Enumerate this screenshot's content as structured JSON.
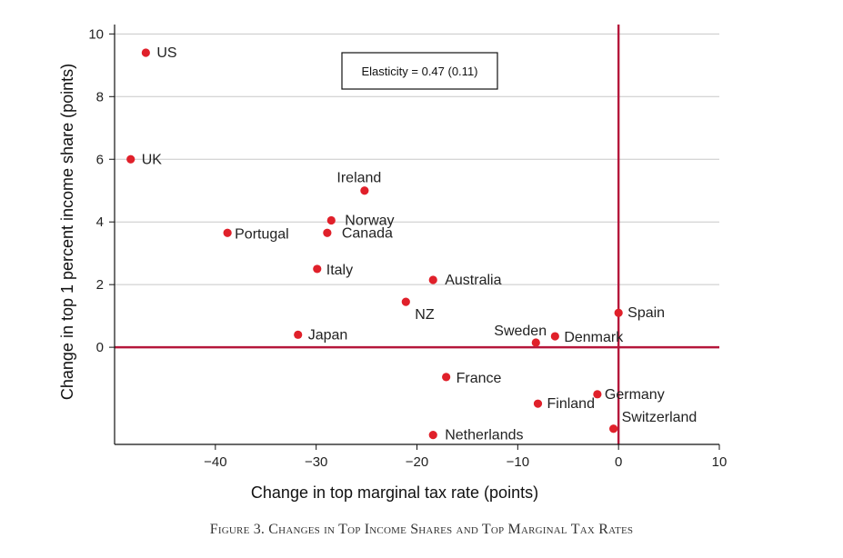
{
  "chart_data": {
    "type": "scatter",
    "xlabel": "Change in top marginal tax rate (points)",
    "ylabel": "Change in top 1 percent income share (points)",
    "xlim": [
      -50,
      10
    ],
    "ylim": [
      -3.1,
      10.3
    ],
    "xticks": [
      -40,
      -30,
      -20,
      -10,
      0,
      10
    ],
    "xtick_labels": [
      "−40",
      "−30",
      "−20",
      "−10",
      "0",
      "10"
    ],
    "yticks": [
      0,
      2,
      4,
      6,
      8,
      10
    ],
    "ytick_labels": [
      "0",
      "2",
      "4",
      "6",
      "8",
      "10"
    ],
    "grid": "horizontal",
    "reference_lines": {
      "x": 0,
      "y": 0,
      "color": "#b5173b"
    },
    "point_color": "#e0202a",
    "annotation": "Elasticity = 0.47 (0.11)",
    "points": [
      {
        "label": "US",
        "x": -46.9,
        "y": 9.4
      },
      {
        "label": "UK",
        "x": -48.4,
        "y": 6.0
      },
      {
        "label": "Ireland",
        "x": -25.2,
        "y": 5.0
      },
      {
        "label": "Norway",
        "x": -28.5,
        "y": 4.05
      },
      {
        "label": "Canada",
        "x": -28.9,
        "y": 3.65
      },
      {
        "label": "Portugal",
        "x": -38.8,
        "y": 3.65
      },
      {
        "label": "Italy",
        "x": -29.9,
        "y": 2.5
      },
      {
        "label": "Australia",
        "x": -18.4,
        "y": 2.15
      },
      {
        "label": "NZ",
        "x": -21.1,
        "y": 1.45
      },
      {
        "label": "Spain",
        "x": 0.0,
        "y": 1.1
      },
      {
        "label": "Japan",
        "x": -31.8,
        "y": 0.4
      },
      {
        "label": "Sweden",
        "x": -8.2,
        "y": 0.15
      },
      {
        "label": "Denmark",
        "x": -6.3,
        "y": 0.35
      },
      {
        "label": "France",
        "x": -17.1,
        "y": -0.95
      },
      {
        "label": "Germany",
        "x": -2.1,
        "y": -1.5
      },
      {
        "label": "Finland",
        "x": -8.0,
        "y": -1.8
      },
      {
        "label": "Switzerland",
        "x": -0.5,
        "y": -2.6
      },
      {
        "label": "Netherlands",
        "x": -18.4,
        "y": -2.8
      }
    ]
  },
  "caption": "Figure 3. Changes in Top Income Shares and Top Marginal Tax Rates"
}
